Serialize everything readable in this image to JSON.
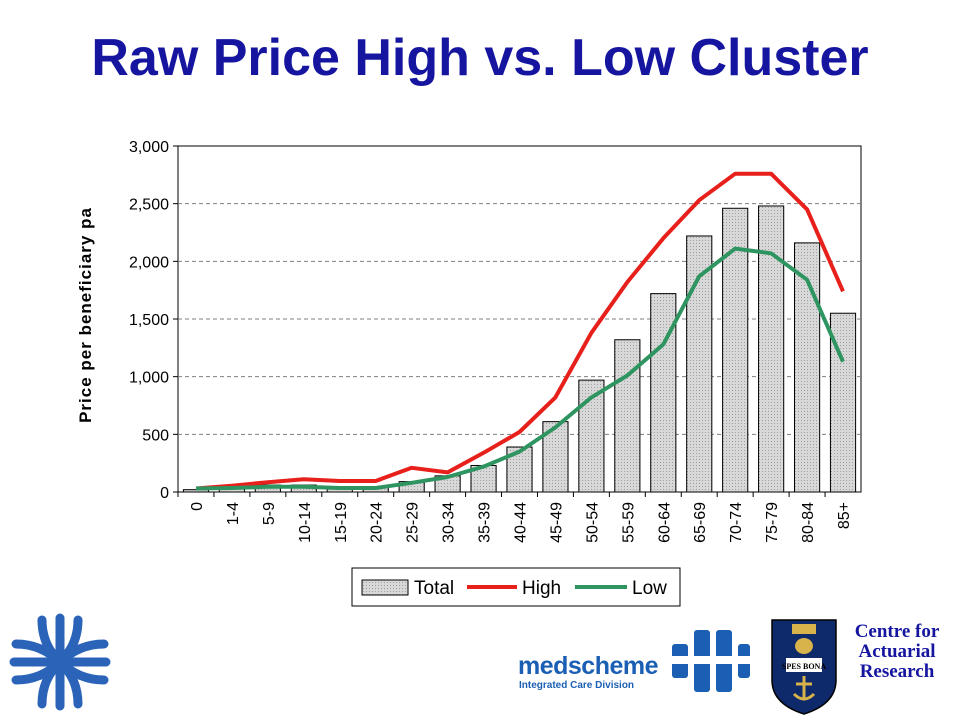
{
  "title": "Raw Price High vs. Low Cluster",
  "colors": {
    "title": "#1515a0",
    "high": "#e8201c",
    "low": "#2e9460",
    "bar_fill": "#d0d0d0",
    "bar_stroke": "#000000"
  },
  "chart_data": {
    "type": "bar",
    "ylabel": "Price per beneficiary pa",
    "xlabel": "",
    "ylim": [
      0,
      3000
    ],
    "yticks": [
      "0",
      "500",
      "1,000",
      "1,500",
      "2,000",
      "2,500",
      "3,000"
    ],
    "grid": "horizontal dashed",
    "legend_position": "bottom",
    "categories": [
      "0",
      "1-4",
      "5-9",
      "10-14",
      "15-19",
      "20-24",
      "25-29",
      "30-34",
      "35-39",
      "40-44",
      "45-49",
      "50-54",
      "55-59",
      "60-64",
      "65-69",
      "70-74",
      "75-79",
      "80-84",
      "85+"
    ],
    "series": [
      {
        "name": "Total",
        "kind": "bar",
        "values": [
          20,
          40,
          60,
          60,
          40,
          40,
          90,
          140,
          230,
          390,
          610,
          970,
          1320,
          1720,
          2220,
          2460,
          2480,
          2160,
          1550
        ]
      },
      {
        "name": "High",
        "kind": "line",
        "values": [
          30,
          55,
          85,
          110,
          95,
          95,
          210,
          170,
          340,
          520,
          820,
          1380,
          1820,
          2200,
          2530,
          2760,
          2760,
          2450,
          1740
        ]
      },
      {
        "name": "Low",
        "kind": "line",
        "values": [
          30,
          35,
          45,
          45,
          35,
          35,
          80,
          130,
          220,
          350,
          560,
          820,
          1010,
          1280,
          1870,
          2110,
          2070,
          1840,
          1130
        ]
      }
    ]
  },
  "logos": {
    "centre_line1": "Centre for",
    "centre_line2": "Actuarial",
    "centre_line3": "Research",
    "crest_motto": "SPES BONA",
    "medscheme_name": "medscheme",
    "medscheme_sub": "Integrated Care Division"
  }
}
